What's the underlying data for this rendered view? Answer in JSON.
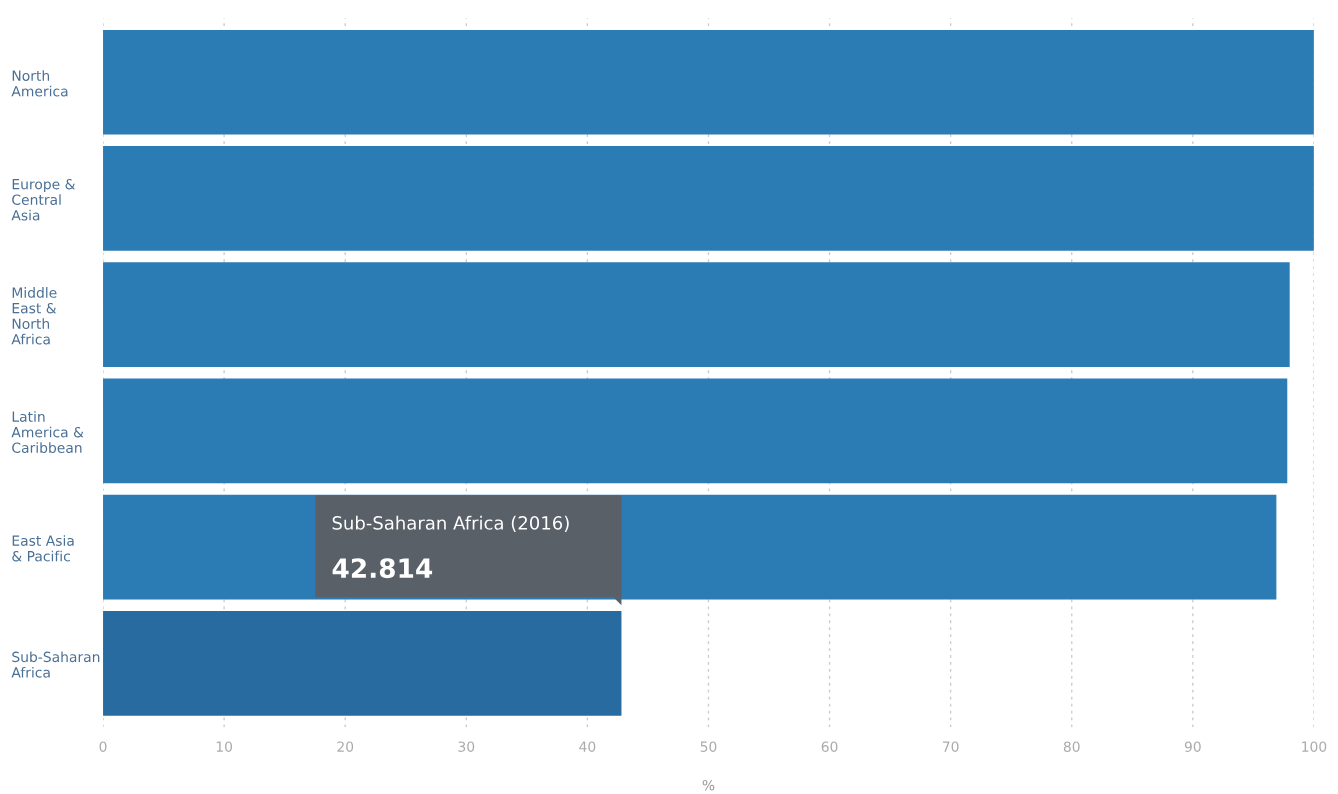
{
  "chart_data": {
    "type": "bar",
    "orientation": "horizontal",
    "xlabel": "%",
    "categories": [
      "North\nAmerica",
      "Europe &\nCentral\nAsia",
      "Middle\nEast &\nNorth\nAfrica",
      "Latin\nAmerica &\nCaribbean",
      "East Asia\n& Pacific",
      "Sub-Saharan\nAfrica"
    ],
    "values": [
      100,
      100,
      98.0,
      97.8,
      96.9,
      42.814
    ],
    "colors": [
      "#2b7bb5",
      "#2b7bb5",
      "#2b7bb5",
      "#2b7bb5",
      "#2b7bb5",
      "#276ba0"
    ],
    "xlim": [
      0,
      100
    ],
    "xticks": [
      0,
      10,
      20,
      30,
      40,
      50,
      60,
      70,
      80,
      90,
      100
    ],
    "grid": "x",
    "annotations": [
      "Sub-Saharan Africa (2016)",
      "42.814"
    ]
  }
}
